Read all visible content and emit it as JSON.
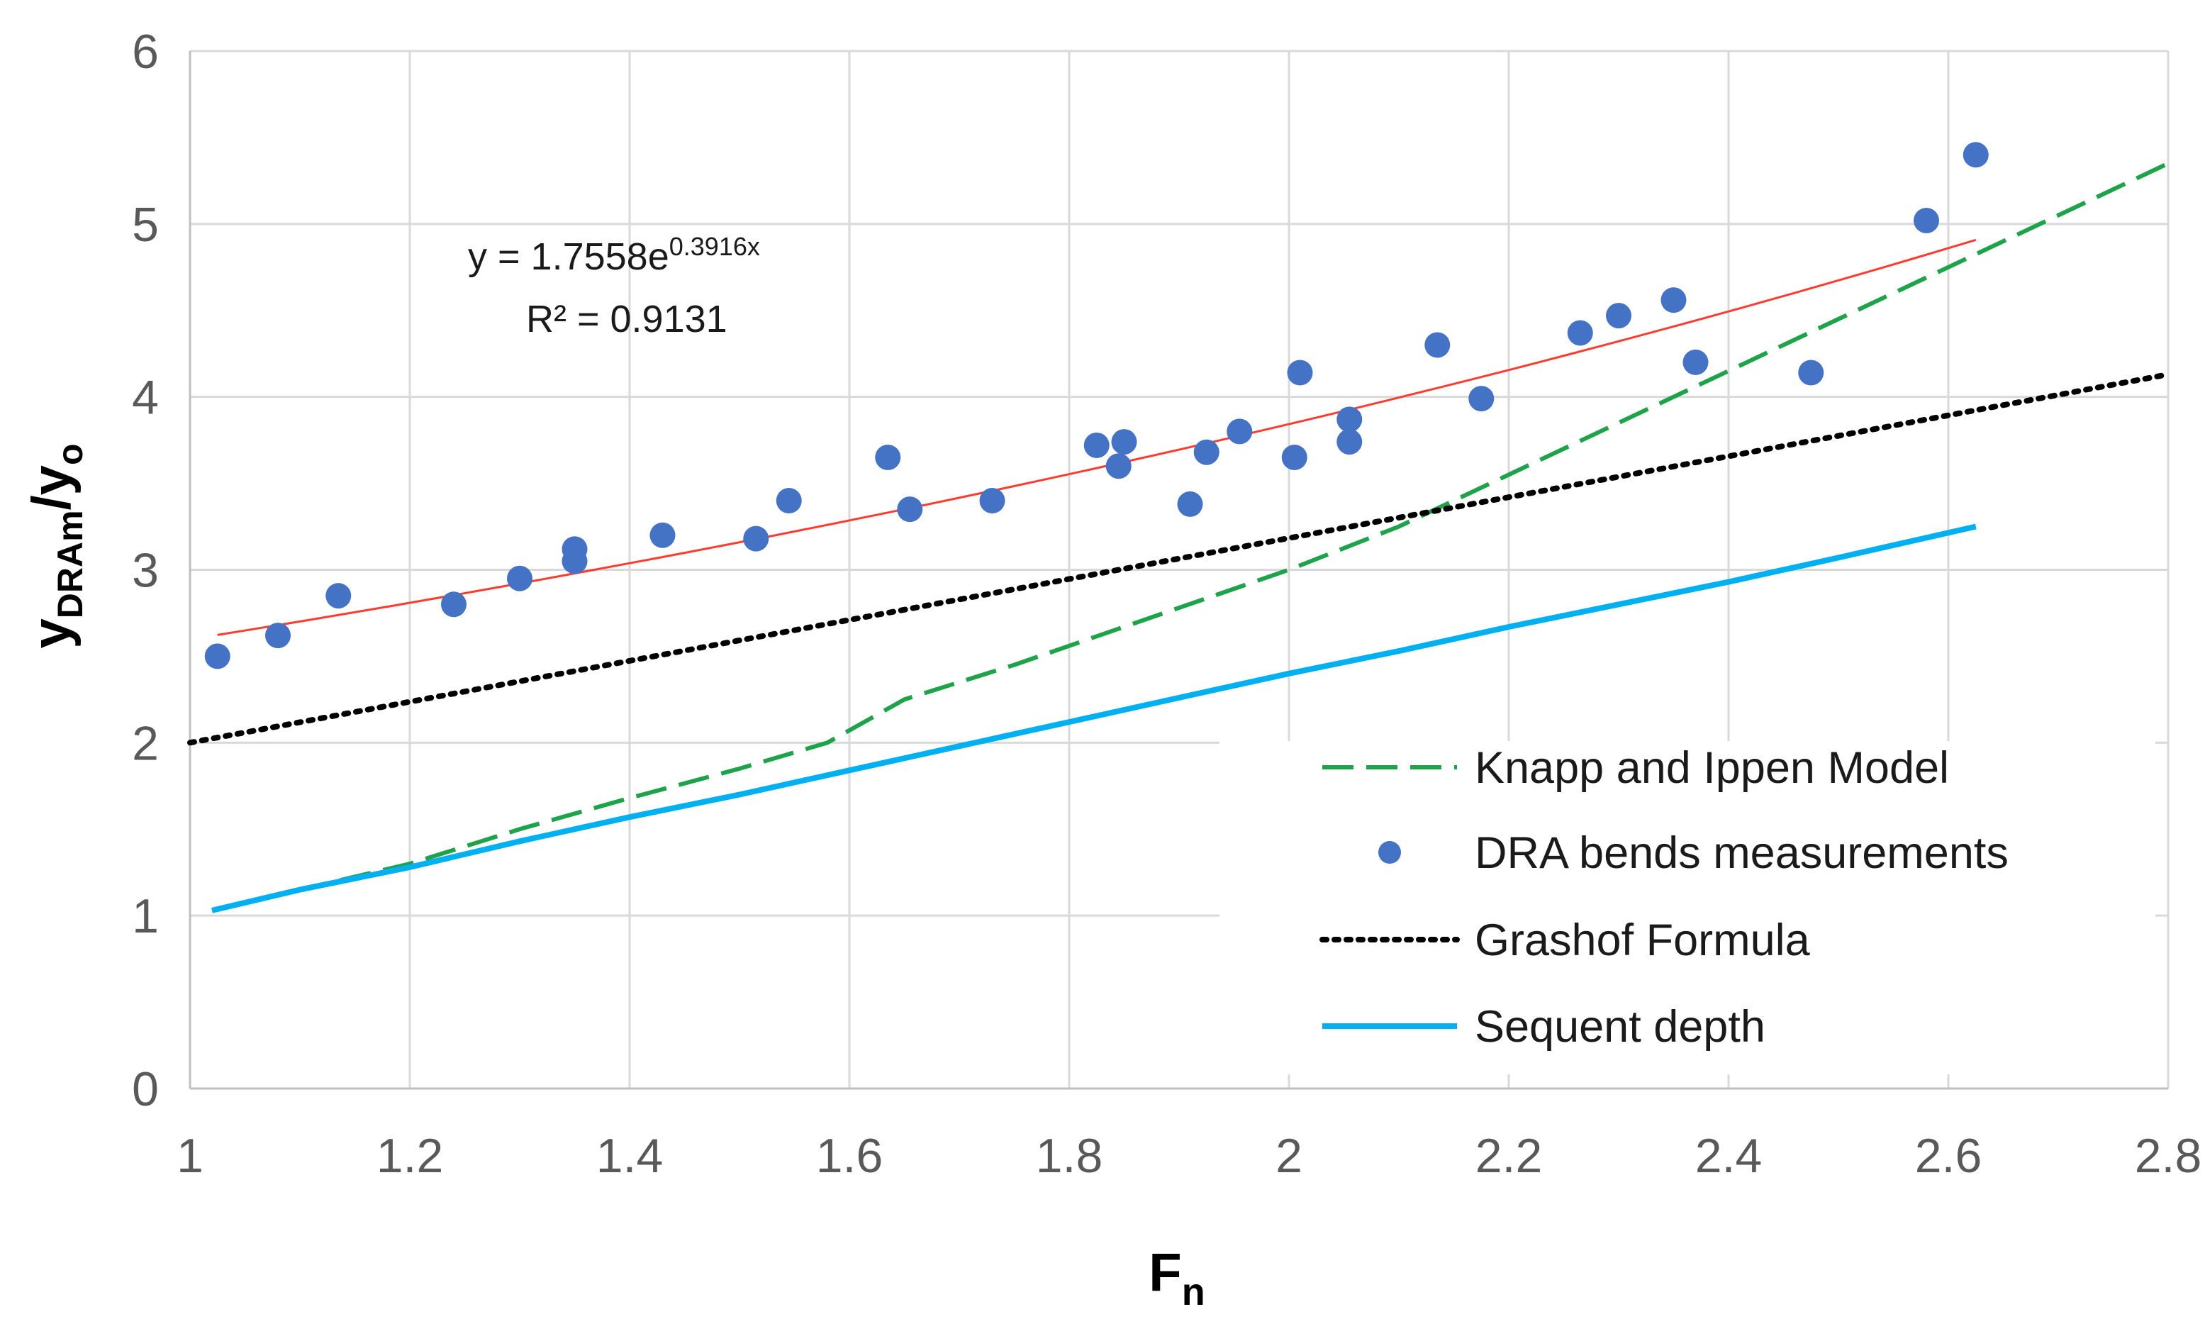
{
  "chart_data": {
    "type": "scatter",
    "title": "",
    "xlabel": {
      "main": "F",
      "sub": "n"
    },
    "ylabel": {
      "main1": "y",
      "sub1": "DRAm",
      "slash": "/",
      "main2": "y",
      "sub2": "o"
    },
    "xlim": [
      1,
      2.8
    ],
    "ylim": [
      0,
      6
    ],
    "x_ticks": [
      "1",
      "1.2",
      "1.4",
      "1.6",
      "1.8",
      "2",
      "2.2",
      "2.4",
      "2.6",
      "2.8"
    ],
    "y_ticks": [
      "0",
      "1",
      "2",
      "3",
      "4",
      "5",
      "6"
    ],
    "grid": true,
    "legend_position": "bottom-right",
    "series": [
      {
        "name": "Knapp and Ippen Model",
        "style": "dashed",
        "color": "#1fa34a",
        "x": [
          1.02,
          1.1,
          1.2,
          1.3,
          1.4,
          1.5,
          1.58,
          1.65,
          1.75,
          1.9,
          2.0,
          2.1,
          2.2,
          2.3,
          2.4,
          2.5,
          2.6,
          2.8
        ],
        "y": [
          1.03,
          1.15,
          1.3,
          1.5,
          1.68,
          1.85,
          2.0,
          2.25,
          2.45,
          2.78,
          3.0,
          3.25,
          3.55,
          3.85,
          4.15,
          4.45,
          4.75,
          5.35
        ]
      },
      {
        "name": "DRA bends measurements",
        "style": "markers",
        "color": "#4472c4",
        "x": [
          1.025,
          1.08,
          1.135,
          1.24,
          1.3,
          1.35,
          1.35,
          1.43,
          1.515,
          1.545,
          1.635,
          1.655,
          1.73,
          1.825,
          1.845,
          1.85,
          1.91,
          1.925,
          1.955,
          2.005,
          2.01,
          2.055,
          2.055,
          2.135,
          2.175,
          2.265,
          2.3,
          2.35,
          2.37,
          2.475,
          2.58,
          2.625
        ],
        "y": [
          2.5,
          2.62,
          2.85,
          2.8,
          2.95,
          3.12,
          3.05,
          3.2,
          3.18,
          3.4,
          3.65,
          3.35,
          3.4,
          3.72,
          3.6,
          3.74,
          3.38,
          3.68,
          3.8,
          3.65,
          4.14,
          3.87,
          3.74,
          4.3,
          3.99,
          4.37,
          4.47,
          4.56,
          4.2,
          4.14,
          5.02,
          5.4
        ]
      },
      {
        "name": "Grashof Formula",
        "style": "dotted",
        "color": "#000000",
        "x": [
          1.0,
          2.8
        ],
        "y": [
          2.0,
          4.13
        ]
      },
      {
        "name": "Sequent depth",
        "style": "solid",
        "color": "#00b0f0",
        "x": [
          1.02,
          1.1,
          1.2,
          1.3,
          1.4,
          1.5,
          1.6,
          1.7,
          1.8,
          1.9,
          2.0,
          2.1,
          2.2,
          2.3,
          2.4,
          2.5,
          2.625
        ],
        "y": [
          1.03,
          1.15,
          1.28,
          1.43,
          1.57,
          1.7,
          1.84,
          1.98,
          2.12,
          2.26,
          2.4,
          2.53,
          2.67,
          2.8,
          2.93,
          3.07,
          3.25
        ]
      }
    ],
    "trendline": {
      "type": "exponential",
      "color": "#ff3b30",
      "a": 1.7558,
      "b": 0.3916,
      "x_range": [
        1.025,
        2.625
      ],
      "equation_prefix": "y = 1.7558e",
      "equation_exponent": "0.3916x",
      "r_squared_label": "R² = 0.9131"
    }
  }
}
